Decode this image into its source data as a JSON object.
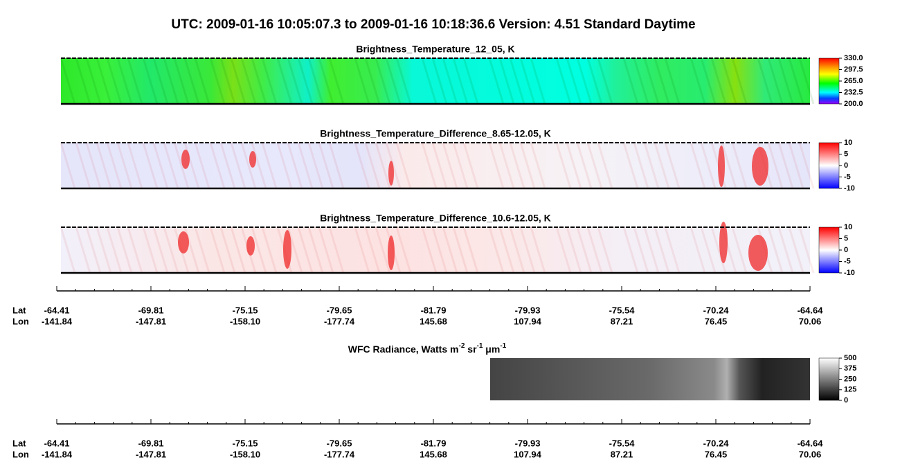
{
  "title": "UTC:  2009-01-16   10:05:07.3  to  2009-01-16   10:18:36.6    Version: 4.51  Standard Daytime",
  "panels": [
    {
      "title": "Brightness_Temperature_12_05, K",
      "colorbar": [
        "330.0",
        "297.5",
        "265.0",
        "232.5",
        "200.0"
      ]
    },
    {
      "title": "Brightness_Temperature_Difference_8.65-12.05, K",
      "colorbar": [
        "10",
        "5",
        "0",
        "-5",
        "-10"
      ]
    },
    {
      "title": "Brightness_Temperature_Difference_10.6-12.05, K",
      "colorbar": [
        "10",
        "5",
        "0",
        "-5",
        "-10"
      ]
    }
  ],
  "axes": [
    {
      "lat_label": "Lat",
      "lon_label": "Lon",
      "lat": [
        "-64.41",
        "-69.81",
        "-75.15",
        "-79.65",
        "-81.79",
        "-79.93",
        "-75.54",
        "-70.24",
        "-64.64"
      ],
      "lon": [
        "-141.84",
        "-147.81",
        "-158.10",
        "-177.74",
        "145.68",
        "107.94",
        "87.21",
        "76.45",
        "70.06"
      ]
    },
    {
      "lat_label": "Lat",
      "lon_label": "Lon",
      "lat": [
        "-64.41",
        "-69.81",
        "-75.15",
        "-79.65",
        "-81.79",
        "-79.93",
        "-75.54",
        "-70.24",
        "-64.64"
      ],
      "lon": [
        "-141.84",
        "-147.81",
        "-158.10",
        "-177.74",
        "145.68",
        "107.94",
        "87.21",
        "76.45",
        "70.06"
      ]
    }
  ],
  "wfc": {
    "title_parts": [
      "WFC Radiance, Watts m",
      "-2",
      " sr",
      "-1",
      " μm",
      "-1"
    ],
    "colorbar": [
      "500",
      "375",
      "250",
      "125",
      "0"
    ]
  }
}
